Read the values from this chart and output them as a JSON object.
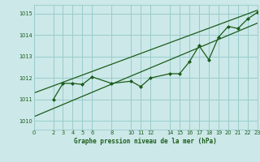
{
  "title": "Graphe pression niveau de la mer (hPa)",
  "bg_color": "#cce8e8",
  "grid_color": "#99cccc",
  "line_color": "#1a5c1a",
  "xlim": [
    0,
    23
  ],
  "ylim": [
    1009.6,
    1015.4
  ],
  "yticks": [
    1010,
    1011,
    1012,
    1013,
    1014,
    1015
  ],
  "xticks": [
    0,
    2,
    3,
    4,
    5,
    6,
    8,
    10,
    11,
    12,
    14,
    15,
    16,
    17,
    18,
    19,
    20,
    21,
    22,
    23
  ],
  "data_x": [
    2,
    3,
    4,
    5,
    6,
    8,
    10,
    11,
    12,
    14,
    15,
    16,
    17,
    18,
    19,
    20,
    21,
    22,
    23
  ],
  "data_y": [
    1011.0,
    1011.75,
    1011.75,
    1011.7,
    1012.05,
    1011.75,
    1011.85,
    1011.6,
    1012.0,
    1012.2,
    1012.2,
    1012.75,
    1013.5,
    1012.85,
    1013.9,
    1014.4,
    1014.3,
    1014.75,
    1015.05
  ],
  "trend1_x": [
    0,
    23
  ],
  "trend1_y": [
    1010.2,
    1014.55
  ],
  "trend2_x": [
    0,
    23
  ],
  "trend2_y": [
    1011.3,
    1015.15
  ]
}
